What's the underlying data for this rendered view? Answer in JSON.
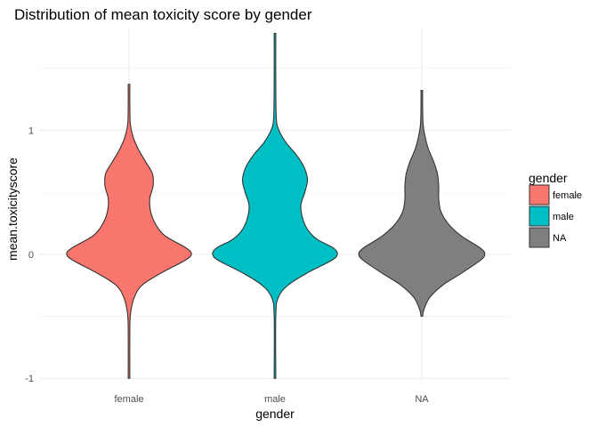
{
  "chart_data": {
    "type": "violin",
    "title": "Distribution of mean toxicity score by gender",
    "xlabel": "gender",
    "ylabel": "mean.toxicityscore",
    "categories": [
      "female",
      "male",
      "NA"
    ],
    "ylim": [
      -1.02,
      1.82
    ],
    "yticks": [
      -1,
      0,
      1
    ],
    "grid": true,
    "legend": {
      "title": "gender",
      "placement": "right",
      "entries": [
        {
          "label": "female",
          "color": "#F8766D"
        },
        {
          "label": "male",
          "color": "#00BFC4"
        },
        {
          "label": "NA",
          "color": "#7F7F7F"
        }
      ]
    },
    "series": [
      {
        "category": "female",
        "color": "#F8766D",
        "min": -1.0,
        "max": 1.37,
        "density": [
          [
            -1.0,
            0.0
          ],
          [
            -0.6,
            0.005
          ],
          [
            -0.47,
            0.025
          ],
          [
            -0.35,
            0.08
          ],
          [
            -0.25,
            0.2
          ],
          [
            -0.15,
            0.5
          ],
          [
            -0.05,
            0.86
          ],
          [
            0.0,
            0.96
          ],
          [
            0.05,
            0.88
          ],
          [
            0.15,
            0.55
          ],
          [
            0.25,
            0.4
          ],
          [
            0.35,
            0.33
          ],
          [
            0.45,
            0.32
          ],
          [
            0.55,
            0.37
          ],
          [
            0.65,
            0.36
          ],
          [
            0.75,
            0.25
          ],
          [
            0.85,
            0.14
          ],
          [
            0.95,
            0.06
          ],
          [
            1.05,
            0.02
          ],
          [
            1.2,
            0.01
          ],
          [
            1.37,
            0.0
          ]
        ]
      },
      {
        "category": "male",
        "color": "#00BFC4",
        "min": -1.0,
        "max": 1.78,
        "density": [
          [
            -1.0,
            0.0
          ],
          [
            -0.5,
            0.005
          ],
          [
            -0.35,
            0.05
          ],
          [
            -0.25,
            0.2
          ],
          [
            -0.15,
            0.5
          ],
          [
            -0.05,
            0.87
          ],
          [
            0.0,
            0.96
          ],
          [
            0.05,
            0.9
          ],
          [
            0.12,
            0.65
          ],
          [
            0.2,
            0.5
          ],
          [
            0.3,
            0.42
          ],
          [
            0.4,
            0.4
          ],
          [
            0.5,
            0.46
          ],
          [
            0.6,
            0.5
          ],
          [
            0.7,
            0.45
          ],
          [
            0.8,
            0.33
          ],
          [
            0.9,
            0.17
          ],
          [
            1.0,
            0.06
          ],
          [
            1.1,
            0.02
          ],
          [
            1.4,
            0.01
          ],
          [
            1.78,
            0.0
          ]
        ]
      },
      {
        "category": "NA",
        "color": "#7F7F7F",
        "min": -0.5,
        "max": 1.32,
        "density": [
          [
            -0.5,
            0.0
          ],
          [
            -0.45,
            0.03
          ],
          [
            -0.35,
            0.12
          ],
          [
            -0.25,
            0.32
          ],
          [
            -0.15,
            0.62
          ],
          [
            -0.05,
            0.9
          ],
          [
            0.0,
            0.97
          ],
          [
            0.05,
            0.9
          ],
          [
            0.15,
            0.6
          ],
          [
            0.25,
            0.4
          ],
          [
            0.35,
            0.29
          ],
          [
            0.45,
            0.26
          ],
          [
            0.55,
            0.26
          ],
          [
            0.65,
            0.24
          ],
          [
            0.75,
            0.18
          ],
          [
            0.85,
            0.1
          ],
          [
            0.95,
            0.05
          ],
          [
            1.05,
            0.02
          ],
          [
            1.2,
            0.01
          ],
          [
            1.32,
            0.0
          ]
        ]
      }
    ]
  }
}
